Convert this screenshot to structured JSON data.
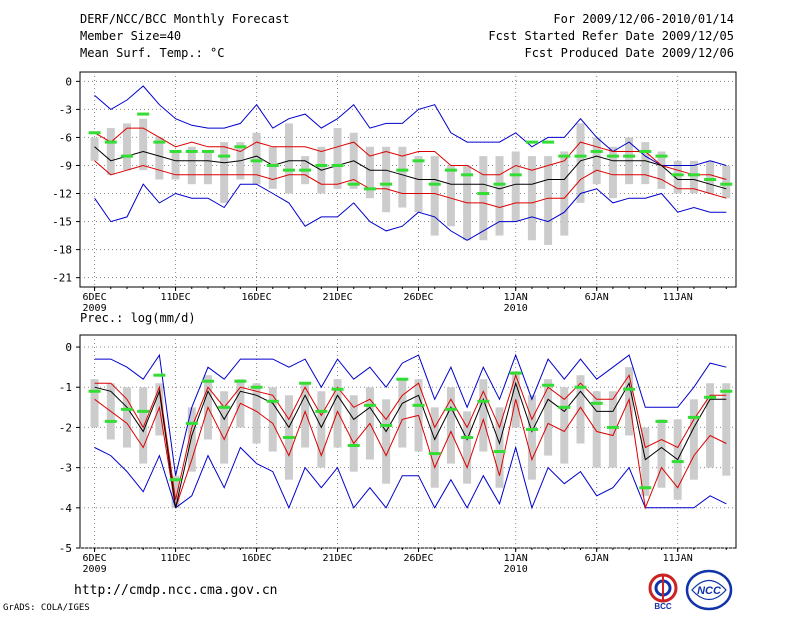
{
  "header": {
    "title": "DERF/NCC/BCC Monthly Forecast",
    "member_size": "Member Size=40",
    "variable": "Mean Surf. Temp.: °C",
    "period": "For 2009/12/06-2010/01/14",
    "started": "Fcst Started Refer Date 2009/12/05",
    "produced": "Fcst Produced Date 2009/12/06"
  },
  "footer": {
    "url": "http://cmdp.ncc.cma.gov.cn",
    "credit": "GrADS: COLA/IGES",
    "logo_left_text": "BCC",
    "logo_right_text": "NCC"
  },
  "colors": {
    "outer": "#0000cc",
    "inner": "#dd0000",
    "mean": "#000000",
    "box": "#cccccc",
    "marker": "#33dd33"
  },
  "chart_data": [
    {
      "type": "line",
      "title": "Mean Surf. Temp.: °C",
      "ylim": [
        -22,
        1
      ],
      "yticks": [
        0,
        -3,
        -6,
        -9,
        -12,
        -15,
        -18,
        -21
      ],
      "ytick_labels": [
        "0",
        "-3",
        "-6",
        "-9",
        "-12",
        "-15",
        "-18",
        "-21"
      ],
      "xtick_labels": [
        {
          "day": 0,
          "label": "6DEC",
          "sub": "2009"
        },
        {
          "day": 5,
          "label": "11DEC",
          "sub": ""
        },
        {
          "day": 10,
          "label": "16DEC",
          "sub": ""
        },
        {
          "day": 15,
          "label": "21DEC",
          "sub": ""
        },
        {
          "day": 20,
          "label": "26DEC",
          "sub": ""
        },
        {
          "day": 26,
          "label": "1JAN",
          "sub": "2010"
        },
        {
          "day": 31,
          "label": "6JAN",
          "sub": ""
        },
        {
          "day": 36,
          "label": "11JAN",
          "sub": ""
        }
      ],
      "days": 40,
      "series": [
        {
          "name": "max",
          "values": [
            -1.5,
            -3,
            -2,
            -0.5,
            -2.5,
            -4,
            -4.7,
            -5,
            -5,
            -4.5,
            -2.5,
            -5,
            -4,
            -3.5,
            -5,
            -4,
            -2.5,
            -5,
            -4.5,
            -4.5,
            -3,
            -2.5,
            -5.5,
            -6.5,
            -6.5,
            -6.5,
            -5.5,
            -7,
            -6,
            -6,
            -4,
            -6,
            -7.5,
            -6.5,
            -8,
            -9,
            -9,
            -9,
            -8.5,
            -9
          ]
        },
        {
          "name": "q_high",
          "values": [
            -5.5,
            -6.5,
            -5,
            -5,
            -6,
            -7,
            -6.5,
            -7,
            -7,
            -7.5,
            -6.5,
            -7,
            -7,
            -7,
            -7.5,
            -7,
            -6.5,
            -8,
            -7.5,
            -8,
            -7.5,
            -7.5,
            -9,
            -9,
            -10,
            -10,
            -9,
            -9.5,
            -9,
            -8.5,
            -6.5,
            -7,
            -7.5,
            -7.5,
            -7.5,
            -9,
            -9.5,
            -10,
            -10,
            -10.5
          ]
        },
        {
          "name": "mean",
          "values": [
            -7,
            -8.5,
            -8,
            -7.5,
            -8,
            -8.5,
            -8.5,
            -8.5,
            -8.7,
            -8.5,
            -8,
            -9,
            -8.5,
            -8.5,
            -9.5,
            -9,
            -8.5,
            -9.5,
            -9.5,
            -10,
            -10.5,
            -10.5,
            -11,
            -11,
            -11,
            -11.5,
            -11,
            -11,
            -10.5,
            -10.5,
            -8.5,
            -8,
            -8.5,
            -8.5,
            -8.5,
            -9,
            -10.5,
            -10.5,
            -11,
            -11.5
          ]
        },
        {
          "name": "q_low",
          "values": [
            -8.5,
            -10,
            -9.5,
            -9,
            -9.5,
            -10,
            -10,
            -10,
            -10,
            -10,
            -10,
            -10.5,
            -10,
            -10,
            -11,
            -11,
            -10.5,
            -11.5,
            -11.5,
            -12,
            -12,
            -12,
            -12.5,
            -13,
            -13,
            -13.5,
            -13,
            -13,
            -12.5,
            -12.5,
            -10.5,
            -9.5,
            -10,
            -10,
            -10,
            -10.5,
            -11.5,
            -11.5,
            -12,
            -12.5
          ]
        },
        {
          "name": "min",
          "values": [
            -12.5,
            -15,
            -14.5,
            -11,
            -13,
            -12,
            -12.5,
            -12.5,
            -13.5,
            -11,
            -11,
            -12,
            -13,
            -15.5,
            -14.5,
            -14.5,
            -13,
            -15,
            -16,
            -15.5,
            -14,
            -14.5,
            -16,
            -17,
            -16,
            -15,
            -15,
            -14.5,
            -15,
            -14,
            -12,
            -11.5,
            -13,
            -12.5,
            -12.5,
            -12,
            -14,
            -13.5,
            -14,
            -14
          ]
        },
        {
          "name": "box_top",
          "values": [
            -6,
            -5,
            -4.5,
            -4,
            -6,
            -7.5,
            -7,
            -7.5,
            -6.5,
            -6.5,
            -5.5,
            -7,
            -4.5,
            -8,
            -7,
            -5,
            -5.5,
            -7,
            -7,
            -7,
            -8,
            -8,
            -9,
            -9,
            -8,
            -8,
            -7.5,
            -8,
            -8,
            -7.5,
            -4.5,
            -6,
            -7,
            -6,
            -6.5,
            -7.5,
            -8.5,
            -8.5,
            -8.5,
            -9
          ]
        },
        {
          "name": "box_bottom",
          "values": [
            -8.5,
            -10,
            -9.5,
            -9.5,
            -10.5,
            -10.5,
            -11,
            -11,
            -13,
            -10.5,
            -11,
            -11.5,
            -12,
            -11,
            -12,
            -11.5,
            -11.5,
            -12.5,
            -14,
            -13.5,
            -14,
            -16.5,
            -15.5,
            -17,
            -17,
            -16.5,
            -15,
            -17,
            -17.5,
            -16.5,
            -13,
            -11,
            -12.5,
            -11,
            -11,
            -11.5,
            -12,
            -12,
            -12,
            -12.5
          ]
        },
        {
          "name": "control",
          "values": [
            -5.5,
            -6.5,
            -8,
            -3.5,
            -6.5,
            -7.5,
            -7.5,
            -7.5,
            -8,
            -7,
            -8.5,
            -9,
            -9.5,
            -9.5,
            -9,
            -9,
            -11,
            -11.5,
            -11,
            -9.5,
            -8.5,
            -11,
            -9.5,
            -10,
            -12,
            -11,
            -10,
            -6.5,
            -6.5,
            -8,
            -8,
            -7.5,
            -8,
            -8,
            -7.5,
            -8,
            -10,
            -10,
            -10.5,
            -11
          ]
        }
      ]
    },
    {
      "type": "line",
      "title": "Prec.: log(mm/d)",
      "ylim": [
        -5,
        0.3
      ],
      "yticks": [
        0,
        -1,
        -2,
        -3,
        -4,
        -5
      ],
      "ytick_labels": [
        "0",
        "-1",
        "-2",
        "-3",
        "-4",
        "-5"
      ],
      "xtick_labels": [
        {
          "day": 0,
          "label": "6DEC",
          "sub": "2009"
        },
        {
          "day": 5,
          "label": "11DEC",
          "sub": ""
        },
        {
          "day": 10,
          "label": "16DEC",
          "sub": ""
        },
        {
          "day": 15,
          "label": "21DEC",
          "sub": ""
        },
        {
          "day": 20,
          "label": "26DEC",
          "sub": ""
        },
        {
          "day": 26,
          "label": "1JAN",
          "sub": "2010"
        },
        {
          "day": 31,
          "label": "6JAN",
          "sub": ""
        },
        {
          "day": 36,
          "label": "11JAN",
          "sub": ""
        }
      ],
      "days": 40,
      "series": [
        {
          "name": "max",
          "values": [
            -0.3,
            -0.3,
            -0.5,
            -0.8,
            -0.2,
            -3.2,
            -1.5,
            -0.5,
            -0.8,
            -0.3,
            -0.3,
            -0.3,
            -0.5,
            -0.3,
            -1,
            -0.3,
            -0.8,
            -0.5,
            -1,
            -0.4,
            -0.2,
            -1.3,
            -0.5,
            -1.5,
            -0.5,
            -1.3,
            -0.2,
            -1.3,
            -0.3,
            -0.8,
            -0.3,
            -0.8,
            -0.5,
            -0.2,
            -1.5,
            -1.5,
            -1.5,
            -1,
            -0.4,
            -0.5
          ]
        },
        {
          "name": "q_high",
          "values": [
            -0.9,
            -0.9,
            -1.3,
            -2,
            -1,
            -3.8,
            -2,
            -1,
            -1.5,
            -1,
            -1.1,
            -1.2,
            -1.8,
            -1,
            -1.7,
            -1,
            -1.5,
            -1.3,
            -1.8,
            -1.2,
            -0.9,
            -2,
            -1.3,
            -2,
            -1.1,
            -2,
            -0.7,
            -1.8,
            -1,
            -1.3,
            -0.9,
            -1.3,
            -1.3,
            -0.7,
            -2.5,
            -2.3,
            -2.5,
            -1.8,
            -1.2,
            -1.2
          ]
        },
        {
          "name": "mean",
          "values": [
            -1,
            -1.1,
            -1.5,
            -2.1,
            -1.1,
            -4,
            -2.2,
            -1.1,
            -1.8,
            -1.1,
            -1.2,
            -1.4,
            -2,
            -1.2,
            -2,
            -1.2,
            -1.8,
            -1.5,
            -2.1,
            -1.4,
            -1.2,
            -2.3,
            -1.5,
            -2.3,
            -1.3,
            -2.4,
            -0.9,
            -2.1,
            -1.3,
            -1.6,
            -1.1,
            -1.6,
            -1.6,
            -0.9,
            -2.8,
            -2.5,
            -2.8,
            -2,
            -1.3,
            -1.3
          ]
        },
        {
          "name": "q_low",
          "values": [
            -1.3,
            -1.6,
            -1.9,
            -2.5,
            -1.5,
            -4,
            -2.8,
            -1.5,
            -2.3,
            -1.4,
            -1.6,
            -1.9,
            -2.7,
            -1.6,
            -2.7,
            -1.6,
            -2.4,
            -1.9,
            -2.7,
            -1.8,
            -1.7,
            -3,
            -2.1,
            -3,
            -1.8,
            -3.2,
            -1.3,
            -2.8,
            -1.9,
            -2.1,
            -1.5,
            -2.1,
            -2.2,
            -1.3,
            -4,
            -3,
            -3.5,
            -2.7,
            -2.2,
            -2.4
          ]
        },
        {
          "name": "min",
          "values": [
            -2.5,
            -2.7,
            -3.1,
            -3.6,
            -2.7,
            -4,
            -3.7,
            -2.7,
            -3.5,
            -2.5,
            -2.9,
            -3.1,
            -4,
            -3,
            -3.5,
            -3,
            -4,
            -3.5,
            -4,
            -3.2,
            -3.2,
            -4,
            -3.3,
            -4,
            -3.2,
            -3.9,
            -2.5,
            -4,
            -3,
            -3.4,
            -3.1,
            -3.7,
            -3.5,
            -3,
            -4,
            -4,
            -4,
            -4,
            -3.7,
            -3.9
          ]
        },
        {
          "name": "box_top",
          "values": [
            -0.8,
            -0.9,
            -1,
            -1,
            -0.9,
            -3.2,
            -1.5,
            -0.7,
            -1.1,
            -0.8,
            -0.9,
            -1,
            -1.2,
            -0.9,
            -1.1,
            -0.8,
            -1.2,
            -1,
            -1.3,
            -0.8,
            -0.8,
            -1.5,
            -1,
            -1.6,
            -0.8,
            -1.5,
            -0.6,
            -1.2,
            -0.8,
            -1,
            -0.7,
            -1.1,
            -1.1,
            -0.5,
            -2,
            -1.8,
            -1.8,
            -1.3,
            -0.9,
            -0.9
          ]
        },
        {
          "name": "box_bottom",
          "values": [
            -2,
            -2.3,
            -2.5,
            -2.9,
            -2.2,
            -4,
            -3.1,
            -2.3,
            -2.9,
            -2,
            -2.4,
            -2.6,
            -3.3,
            -2.5,
            -3,
            -2.5,
            -3.1,
            -2.8,
            -3.4,
            -2.5,
            -2.6,
            -3.5,
            -2.9,
            -3.4,
            -2.6,
            -3.5,
            -2,
            -3.3,
            -2.7,
            -2.9,
            -2.4,
            -3,
            -3,
            -2.2,
            -3.7,
            -3.5,
            -3.8,
            -3.3,
            -3,
            -3.2
          ]
        },
        {
          "name": "control",
          "values": [
            -1.1,
            -1.85,
            -1.55,
            -1.6,
            -0.7,
            -3.3,
            -1.9,
            -0.85,
            -1.5,
            -0.85,
            -1,
            -1.35,
            -2.25,
            -0.9,
            -1.6,
            -1.05,
            -2.45,
            -1.45,
            -1.95,
            -0.8,
            -1.45,
            -2.65,
            -1.55,
            -2.25,
            -1.35,
            -2.6,
            -0.65,
            -2.05,
            -0.95,
            -1.5,
            -1,
            -1.4,
            -2,
            -1.05,
            -3.5,
            -1.85,
            -2.85,
            -1.75,
            -1.25,
            -1.1
          ]
        }
      ]
    }
  ]
}
